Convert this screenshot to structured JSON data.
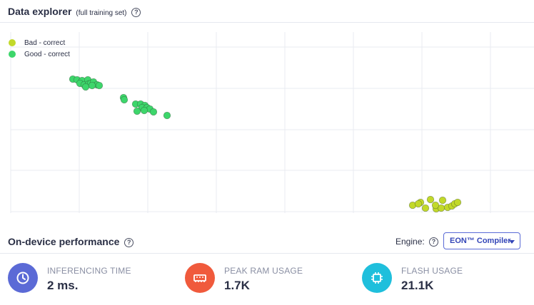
{
  "explorer": {
    "title": "Data explorer",
    "subtitle": "(full training set)",
    "help_icon": "help-circle-icon"
  },
  "legend": [
    {
      "label": "Bad - correct",
      "color": "#c2d92a"
    },
    {
      "label": "Good - correct",
      "color": "#3dd66b"
    }
  ],
  "chart_data": {
    "type": "scatter",
    "grid": true,
    "series": [
      {
        "name": "Good - correct",
        "color": "#3dd66b",
        "points": [
          [
            102,
            78
          ],
          [
            108,
            79
          ],
          [
            115,
            80
          ],
          [
            112,
            84
          ],
          [
            118,
            86
          ],
          [
            123,
            79
          ],
          [
            124,
            85
          ],
          [
            127,
            84
          ],
          [
            131,
            82
          ],
          [
            136,
            86
          ],
          [
            120,
            89
          ],
          [
            129,
            87
          ],
          [
            139,
            87
          ],
          [
            173,
            104
          ],
          [
            174,
            107
          ],
          [
            190,
            113
          ],
          [
            197,
            113
          ],
          [
            203,
            115
          ],
          [
            199,
            118
          ],
          [
            206,
            118
          ],
          [
            210,
            120
          ],
          [
            215,
            124
          ],
          [
            192,
            123
          ],
          [
            202,
            122
          ],
          [
            234,
            129
          ]
        ]
      },
      {
        "name": "Bad - correct",
        "color": "#c2d92a",
        "points": [
          [
            578,
            255
          ],
          [
            589,
            251
          ],
          [
            596,
            259
          ],
          [
            603,
            247
          ],
          [
            611,
            260
          ],
          [
            618,
            259
          ],
          [
            620,
            248
          ],
          [
            627,
            258
          ],
          [
            633,
            256
          ],
          [
            637,
            253
          ],
          [
            641,
            251
          ],
          [
            610,
            255
          ],
          [
            586,
            253
          ]
        ]
      }
    ]
  },
  "performance": {
    "title": "On-device performance",
    "help_icon": "help-circle-icon",
    "engine_label": "Engine:",
    "engine_value": "EON™ Compiler",
    "metrics": [
      {
        "label": "INFERENCING TIME",
        "value": "2 ms.",
        "color": "#5b6ad6",
        "icon": "clock-icon"
      },
      {
        "label": "PEAK RAM USAGE",
        "value": "1.7K",
        "color": "#f05a3c",
        "icon": "memory-icon"
      },
      {
        "label": "FLASH USAGE",
        "value": "21.1K",
        "color": "#1fbfdc",
        "icon": "chip-icon"
      }
    ]
  }
}
